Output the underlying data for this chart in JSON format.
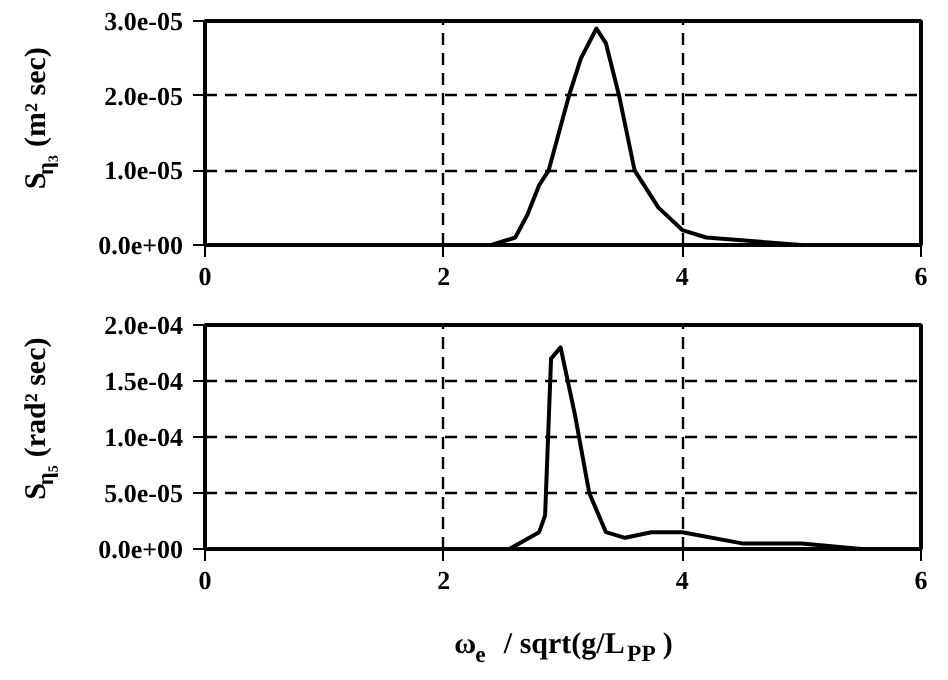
{
  "chart_data": [
    {
      "type": "line",
      "ylabel": "S$_{η₃}$ (m² sec)",
      "xlim": [
        0,
        6
      ],
      "xticks": [
        0,
        2,
        4,
        6
      ],
      "ylim": [
        0,
        3e-05
      ],
      "yticks": [
        {
          "value": 0,
          "label": "0.0e+00"
        },
        {
          "value": 1e-05,
          "label": "1.0e-05"
        },
        {
          "value": 2e-05,
          "label": "2.0e-05"
        },
        {
          "value": 3e-05,
          "label": "3.0e-05"
        }
      ],
      "grid": true,
      "line_style": "solid",
      "series": [
        {
          "color": "#000000",
          "x": [
            0,
            1,
            2,
            2.4,
            2.6,
            2.7,
            2.8,
            2.88,
            3.05,
            3.15,
            3.28,
            3.36,
            3.47,
            3.6,
            3.8,
            4.0,
            4.2,
            5.0,
            6.0
          ],
          "values": [
            0,
            0,
            0,
            0,
            1e-06,
            4e-06,
            8e-06,
            1e-05,
            2e-05,
            2.5e-05,
            2.9e-05,
            2.7e-05,
            2e-05,
            1e-05,
            5e-06,
            2e-06,
            1e-06,
            0,
            0
          ]
        }
      ]
    },
    {
      "type": "line",
      "ylabel": "S$_{η₅}$ (rad² sec)",
      "xlabel": "ω$_{e}$ / sqrt(g/L$_{PP}$)",
      "xlim": [
        0,
        6
      ],
      "xticks": [
        0,
        2,
        4,
        6
      ],
      "ylim": [
        0,
        0.0002
      ],
      "yticks": [
        {
          "value": 0,
          "label": "0.0e+00"
        },
        {
          "value": 5e-05,
          "label": "5.0e-05"
        },
        {
          "value": 0.0001,
          "label": "1.0e-04"
        },
        {
          "value": 0.00015,
          "label": "1.5e-04"
        },
        {
          "value": 0.0002,
          "label": "2.0e-04"
        }
      ],
      "grid": true,
      "line_style": "solid",
      "series": [
        {
          "color": "#000000",
          "x": [
            0,
            1,
            2,
            2.55,
            2.8,
            2.85,
            2.9,
            2.98,
            3.1,
            3.22,
            3.36,
            3.52,
            3.74,
            4.0,
            4.5,
            5.0,
            5.5,
            6.0
          ],
          "values": [
            0,
            0,
            0,
            0,
            1.5e-05,
            3e-05,
            0.00017,
            0.00018,
            0.00012,
            5e-05,
            1.5e-05,
            1e-05,
            1.5e-05,
            1.5e-05,
            5e-06,
            5e-06,
            0,
            0
          ]
        }
      ]
    }
  ]
}
